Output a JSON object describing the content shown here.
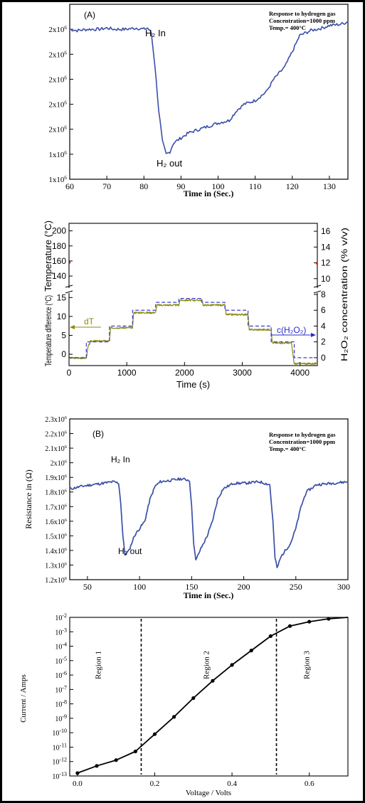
{
  "colors": {
    "blue": "#3b4fa8",
    "olive": "#8b8a10",
    "dashblue": "#2a2acc",
    "black": "#000000",
    "red": "#d01010"
  },
  "chart_data": [
    {
      "type": "line",
      "panel_label": "(A)",
      "annotation_lines": [
        "Response to hydrogen gas",
        "Concentration=1000 ppm",
        "Temp.= 400°C"
      ],
      "events": [
        {
          "text": "H₂ In",
          "x": 82
        },
        {
          "text": "H₂ out",
          "x": 86
        }
      ],
      "xlabel": "Time in (Sec.)",
      "ylabel": "",
      "xlim": [
        60,
        135
      ],
      "ylim": [
        1.0,
        2.4
      ],
      "xticks": [
        60,
        70,
        80,
        90,
        100,
        110,
        120,
        130
      ],
      "yticks": [
        {
          "v": 1.0,
          "label": "1x10⁶"
        },
        {
          "v": 1.2,
          "label": "1x10⁶"
        },
        {
          "v": 1.4,
          "label": "2x10⁶"
        },
        {
          "v": 1.6,
          "label": "2x10⁶"
        },
        {
          "v": 1.8,
          "label": "2x10⁶"
        },
        {
          "v": 2.0,
          "label": "2x10⁶"
        },
        {
          "v": 2.2,
          "label": "2x10⁶"
        }
      ],
      "series": [
        {
          "x": [
            60,
            62,
            65,
            68,
            70,
            72,
            75,
            78,
            80,
            81,
            82,
            83,
            84,
            85,
            86,
            87,
            88,
            90,
            92,
            95,
            98,
            100,
            103,
            105,
            107,
            110,
            113,
            115,
            118,
            120,
            122,
            125,
            128,
            130,
            133,
            135
          ],
          "y": [
            2.2,
            2.19,
            2.2,
            2.2,
            2.21,
            2.2,
            2.2,
            2.21,
            2.2,
            2.21,
            2.17,
            1.9,
            1.55,
            1.3,
            1.2,
            1.22,
            1.29,
            1.33,
            1.37,
            1.4,
            1.43,
            1.45,
            1.47,
            1.55,
            1.6,
            1.63,
            1.7,
            1.8,
            1.9,
            2.02,
            2.15,
            2.19,
            2.21,
            2.23,
            2.24,
            2.26
          ]
        }
      ]
    },
    {
      "type": "line",
      "xlabel": "Time (s)",
      "ylabel_left_top": "Temperature (°C)",
      "ylabel_left_bottom": "Temperature difference (°C)",
      "ylabel_right": "H₂O₂ concentration (% v/v)",
      "xlim": [
        0,
        4300
      ],
      "xticks": [
        0,
        1000,
        2000,
        3000,
        4000
      ],
      "upper_left_ticks": [
        140,
        160,
        180,
        200
      ],
      "upper_left_range": [
        125,
        210
      ],
      "lower_left_ticks": [
        0,
        5,
        10,
        15
      ],
      "lower_left_range": [
        -3,
        16
      ],
      "right_ticks": [
        0,
        2,
        4,
        6,
        8,
        10,
        12,
        14,
        16
      ],
      "right_range": [
        -1,
        17
      ],
      "annotations": [
        "dT",
        "c(H₂O₂)"
      ],
      "series": [
        {
          "name": "dT",
          "steps": [
            [
              0,
              -1
            ],
            [
              300,
              -1
            ],
            [
              330,
              2
            ],
            [
              380,
              3.5
            ],
            [
              700,
              3.5
            ],
            [
              720,
              7
            ],
            [
              1100,
              7
            ],
            [
              1120,
              11
            ],
            [
              1500,
              11
            ],
            [
              1520,
              13
            ],
            [
              1900,
              13
            ],
            [
              1920,
              14.3
            ],
            [
              2300,
              14.3
            ],
            [
              2320,
              13
            ],
            [
              2700,
              13
            ],
            [
              2720,
              10.5
            ],
            [
              3100,
              10.5
            ],
            [
              3120,
              6.5
            ],
            [
              3500,
              6.5
            ],
            [
              3520,
              3
            ],
            [
              3850,
              3
            ],
            [
              3900,
              -2.5
            ],
            [
              4300,
              -2.5
            ]
          ]
        },
        {
          "name": "c(H₂O₂)",
          "steps": [
            [
              0,
              0
            ],
            [
              300,
              0
            ],
            [
              300,
              2
            ],
            [
              700,
              2
            ],
            [
              700,
              4
            ],
            [
              1100,
              4
            ],
            [
              1100,
              6
            ],
            [
              1500,
              6
            ],
            [
              1500,
              7
            ],
            [
              1900,
              7
            ],
            [
              1900,
              7.5
            ],
            [
              2300,
              7.5
            ],
            [
              2300,
              7
            ],
            [
              2700,
              7
            ],
            [
              2700,
              6
            ],
            [
              3100,
              6
            ],
            [
              3100,
              4
            ],
            [
              3500,
              4
            ],
            [
              3500,
              2
            ],
            [
              3900,
              2
            ],
            [
              3900,
              0
            ],
            [
              4300,
              0
            ]
          ]
        }
      ]
    },
    {
      "type": "line",
      "panel_label": "(B)",
      "annotation_lines": [
        "Response to hydrogen gas",
        "Concentration=1000 ppm",
        "Temp.= 400°C"
      ],
      "events": [
        {
          "text": "H₂ In",
          "x": 75
        },
        {
          "text": "H₂ out",
          "x": 85
        }
      ],
      "xlabel": "Time in (Sec.)",
      "ylabel": "Resistance in (Ω)",
      "xlim": [
        33,
        300
      ],
      "ylim": [
        1.2,
        2.3
      ],
      "xticks": [
        50,
        100,
        150,
        200,
        250,
        300
      ],
      "yticks": [
        {
          "v": 1.2,
          "label": "1.2x10⁶"
        },
        {
          "v": 1.3,
          "label": "1.3x10⁶"
        },
        {
          "v": 1.4,
          "label": "1.4x10⁶"
        },
        {
          "v": 1.5,
          "label": "1.5x10⁶"
        },
        {
          "v": 1.6,
          "label": "1.6x10⁶"
        },
        {
          "v": 1.7,
          "label": "1.7x10⁶"
        },
        {
          "v": 1.8,
          "label": "1.8x10⁶"
        },
        {
          "v": 1.9,
          "label": "1.9x10⁶"
        },
        {
          "v": 2.0,
          "label": "2x10⁶"
        },
        {
          "v": 2.1,
          "label": "2.1x10⁶"
        },
        {
          "v": 2.2,
          "label": "2.2x10⁶"
        },
        {
          "v": 2.3,
          "label": "2.3x10⁶"
        }
      ],
      "series": [
        {
          "x": [
            33,
            45,
            55,
            65,
            75,
            80,
            82,
            84,
            86,
            90,
            95,
            100,
            105,
            110,
            115,
            120,
            130,
            140,
            148,
            150,
            152,
            154,
            158,
            165,
            170,
            175,
            180,
            190,
            200,
            215,
            225,
            228,
            230,
            232,
            236,
            245,
            250,
            255,
            260,
            270,
            285,
            300
          ],
          "y": [
            1.82,
            1.84,
            1.85,
            1.86,
            1.87,
            1.86,
            1.72,
            1.5,
            1.37,
            1.4,
            1.5,
            1.55,
            1.6,
            1.75,
            1.84,
            1.87,
            1.88,
            1.89,
            1.88,
            1.7,
            1.45,
            1.33,
            1.4,
            1.5,
            1.6,
            1.75,
            1.82,
            1.86,
            1.86,
            1.87,
            1.85,
            1.6,
            1.35,
            1.28,
            1.36,
            1.45,
            1.55,
            1.7,
            1.8,
            1.85,
            1.86,
            1.87
          ]
        }
      ]
    },
    {
      "type": "line",
      "xlabel": "Voltage / Volts",
      "ylabel": "Current / Amps",
      "xlim": [
        -0.02,
        0.7
      ],
      "xticks": [
        {
          "v": 0.0,
          "label": "0.0"
        },
        {
          "v": 0.2,
          "label": "0.2"
        },
        {
          "v": 0.4,
          "label": "0.4"
        },
        {
          "v": 0.6,
          "label": "0.6"
        }
      ],
      "yscale": "log",
      "ylim_exp": [
        -13,
        -2
      ],
      "yticks_exp": [
        -2,
        -3,
        -4,
        -5,
        -6,
        -7,
        -8,
        -9,
        -10,
        -11,
        -12,
        -13
      ],
      "regions": [
        {
          "label": "Region 1",
          "x": 0.06
        },
        {
          "label": "Region 2",
          "x": 0.34
        },
        {
          "label": "Region 3",
          "x": 0.6
        }
      ],
      "region_boundaries": [
        0.165,
        0.515
      ],
      "series": [
        {
          "x": [
            0.0,
            0.05,
            0.1,
            0.15,
            0.2,
            0.25,
            0.3,
            0.35,
            0.4,
            0.45,
            0.5,
            0.55,
            0.6,
            0.65,
            0.7
          ],
          "y_exp": [
            -12.8,
            -12.3,
            -11.9,
            -11.3,
            -10.1,
            -8.9,
            -7.6,
            -6.4,
            -5.3,
            -4.3,
            -3.3,
            -2.6,
            -2.3,
            -2.1,
            -2.0
          ],
          "markers_x": [
            0.0,
            0.05,
            0.1,
            0.15,
            0.2,
            0.25,
            0.3,
            0.35,
            0.4,
            0.45,
            0.5,
            0.55,
            0.6,
            0.65
          ]
        }
      ]
    }
  ]
}
